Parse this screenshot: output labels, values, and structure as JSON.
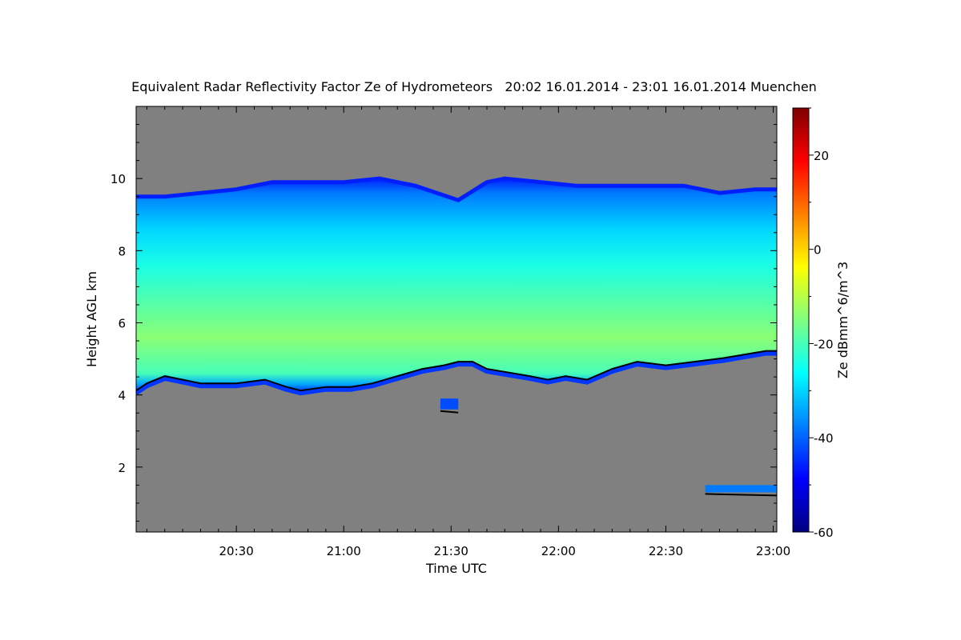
{
  "chart_data": {
    "type": "heatmap",
    "title": "Equivalent Radar Reflectivity Factor Ze of Hydrometeors   20:02 16.01.2014 - 23:01 16.01.2014 Muenchen",
    "xlabel": "Time UTC",
    "ylabel": "Height AGL km",
    "colorbar_label": "Ze dBmm^6/m^3",
    "x_unit": "minutes since 20:00 UTC",
    "xlim": [
      2,
      181
    ],
    "ylim": [
      0.2,
      12
    ],
    "x_ticks": [
      {
        "value": 30,
        "label": "20:30"
      },
      {
        "value": 60,
        "label": "21:00"
      },
      {
        "value": 90,
        "label": "21:30"
      },
      {
        "value": 120,
        "label": "22:00"
      },
      {
        "value": 150,
        "label": "22:30"
      },
      {
        "value": 180,
        "label": "23:00"
      }
    ],
    "y_ticks": [
      {
        "value": 2,
        "label": "2"
      },
      {
        "value": 4,
        "label": "4"
      },
      {
        "value": 6,
        "label": "6"
      },
      {
        "value": 8,
        "label": "8"
      },
      {
        "value": 10,
        "label": "10"
      }
    ],
    "color_range": [
      -60,
      30
    ],
    "colorbar_ticks": [
      {
        "value": 20,
        "label": "20"
      },
      {
        "value": 0,
        "label": "0"
      },
      {
        "value": -20,
        "label": "-20"
      },
      {
        "value": -40,
        "label": "-40"
      },
      {
        "value": -60,
        "label": "-60"
      }
    ],
    "colormap": [
      "#00007f",
      "#0000ff",
      "#0080ff",
      "#00ffff",
      "#80ff80",
      "#ffff00",
      "#ff8000",
      "#ff0000",
      "#7f0000"
    ],
    "background_color": "#808080",
    "cloud_layer": {
      "top_km": [
        [
          2,
          9.5
        ],
        [
          10,
          9.5
        ],
        [
          20,
          9.6
        ],
        [
          30,
          9.7
        ],
        [
          40,
          9.9
        ],
        [
          50,
          9.9
        ],
        [
          60,
          9.9
        ],
        [
          70,
          10.0
        ],
        [
          80,
          9.8
        ],
        [
          86,
          9.6
        ],
        [
          92,
          9.4
        ],
        [
          100,
          9.9
        ],
        [
          105,
          10.0
        ],
        [
          115,
          9.9
        ],
        [
          125,
          9.8
        ],
        [
          135,
          9.8
        ],
        [
          145,
          9.8
        ],
        [
          155,
          9.8
        ],
        [
          165,
          9.6
        ],
        [
          175,
          9.7
        ],
        [
          181,
          9.7
        ]
      ],
      "base_km": [
        [
          2,
          4.1
        ],
        [
          5,
          4.3
        ],
        [
          10,
          4.5
        ],
        [
          15,
          4.4
        ],
        [
          20,
          4.3
        ],
        [
          30,
          4.3
        ],
        [
          38,
          4.4
        ],
        [
          44,
          4.2
        ],
        [
          48,
          4.1
        ],
        [
          55,
          4.2
        ],
        [
          62,
          4.2
        ],
        [
          68,
          4.3
        ],
        [
          75,
          4.5
        ],
        [
          82,
          4.7
        ],
        [
          88,
          4.8
        ],
        [
          92,
          4.9
        ],
        [
          96,
          4.9
        ],
        [
          100,
          4.7
        ],
        [
          106,
          4.6
        ],
        [
          112,
          4.5
        ],
        [
          117,
          4.4
        ],
        [
          122,
          4.5
        ],
        [
          128,
          4.4
        ],
        [
          135,
          4.7
        ],
        [
          142,
          4.9
        ],
        [
          150,
          4.8
        ],
        [
          158,
          4.9
        ],
        [
          166,
          5.0
        ],
        [
          172,
          5.1
        ],
        [
          178,
          5.2
        ],
        [
          181,
          5.2
        ]
      ],
      "max_ze_dbz": -14,
      "max_ze_height_km": 5.6
    },
    "isolated_echoes": [
      {
        "time_range": [
          87,
          92
        ],
        "height_km": [
          3.6,
          3.9
        ],
        "ze_dbz": -42
      },
      {
        "time_range": [
          161,
          181
        ],
        "height_km": [
          1.3,
          1.5
        ],
        "ze_dbz": -38
      }
    ]
  }
}
